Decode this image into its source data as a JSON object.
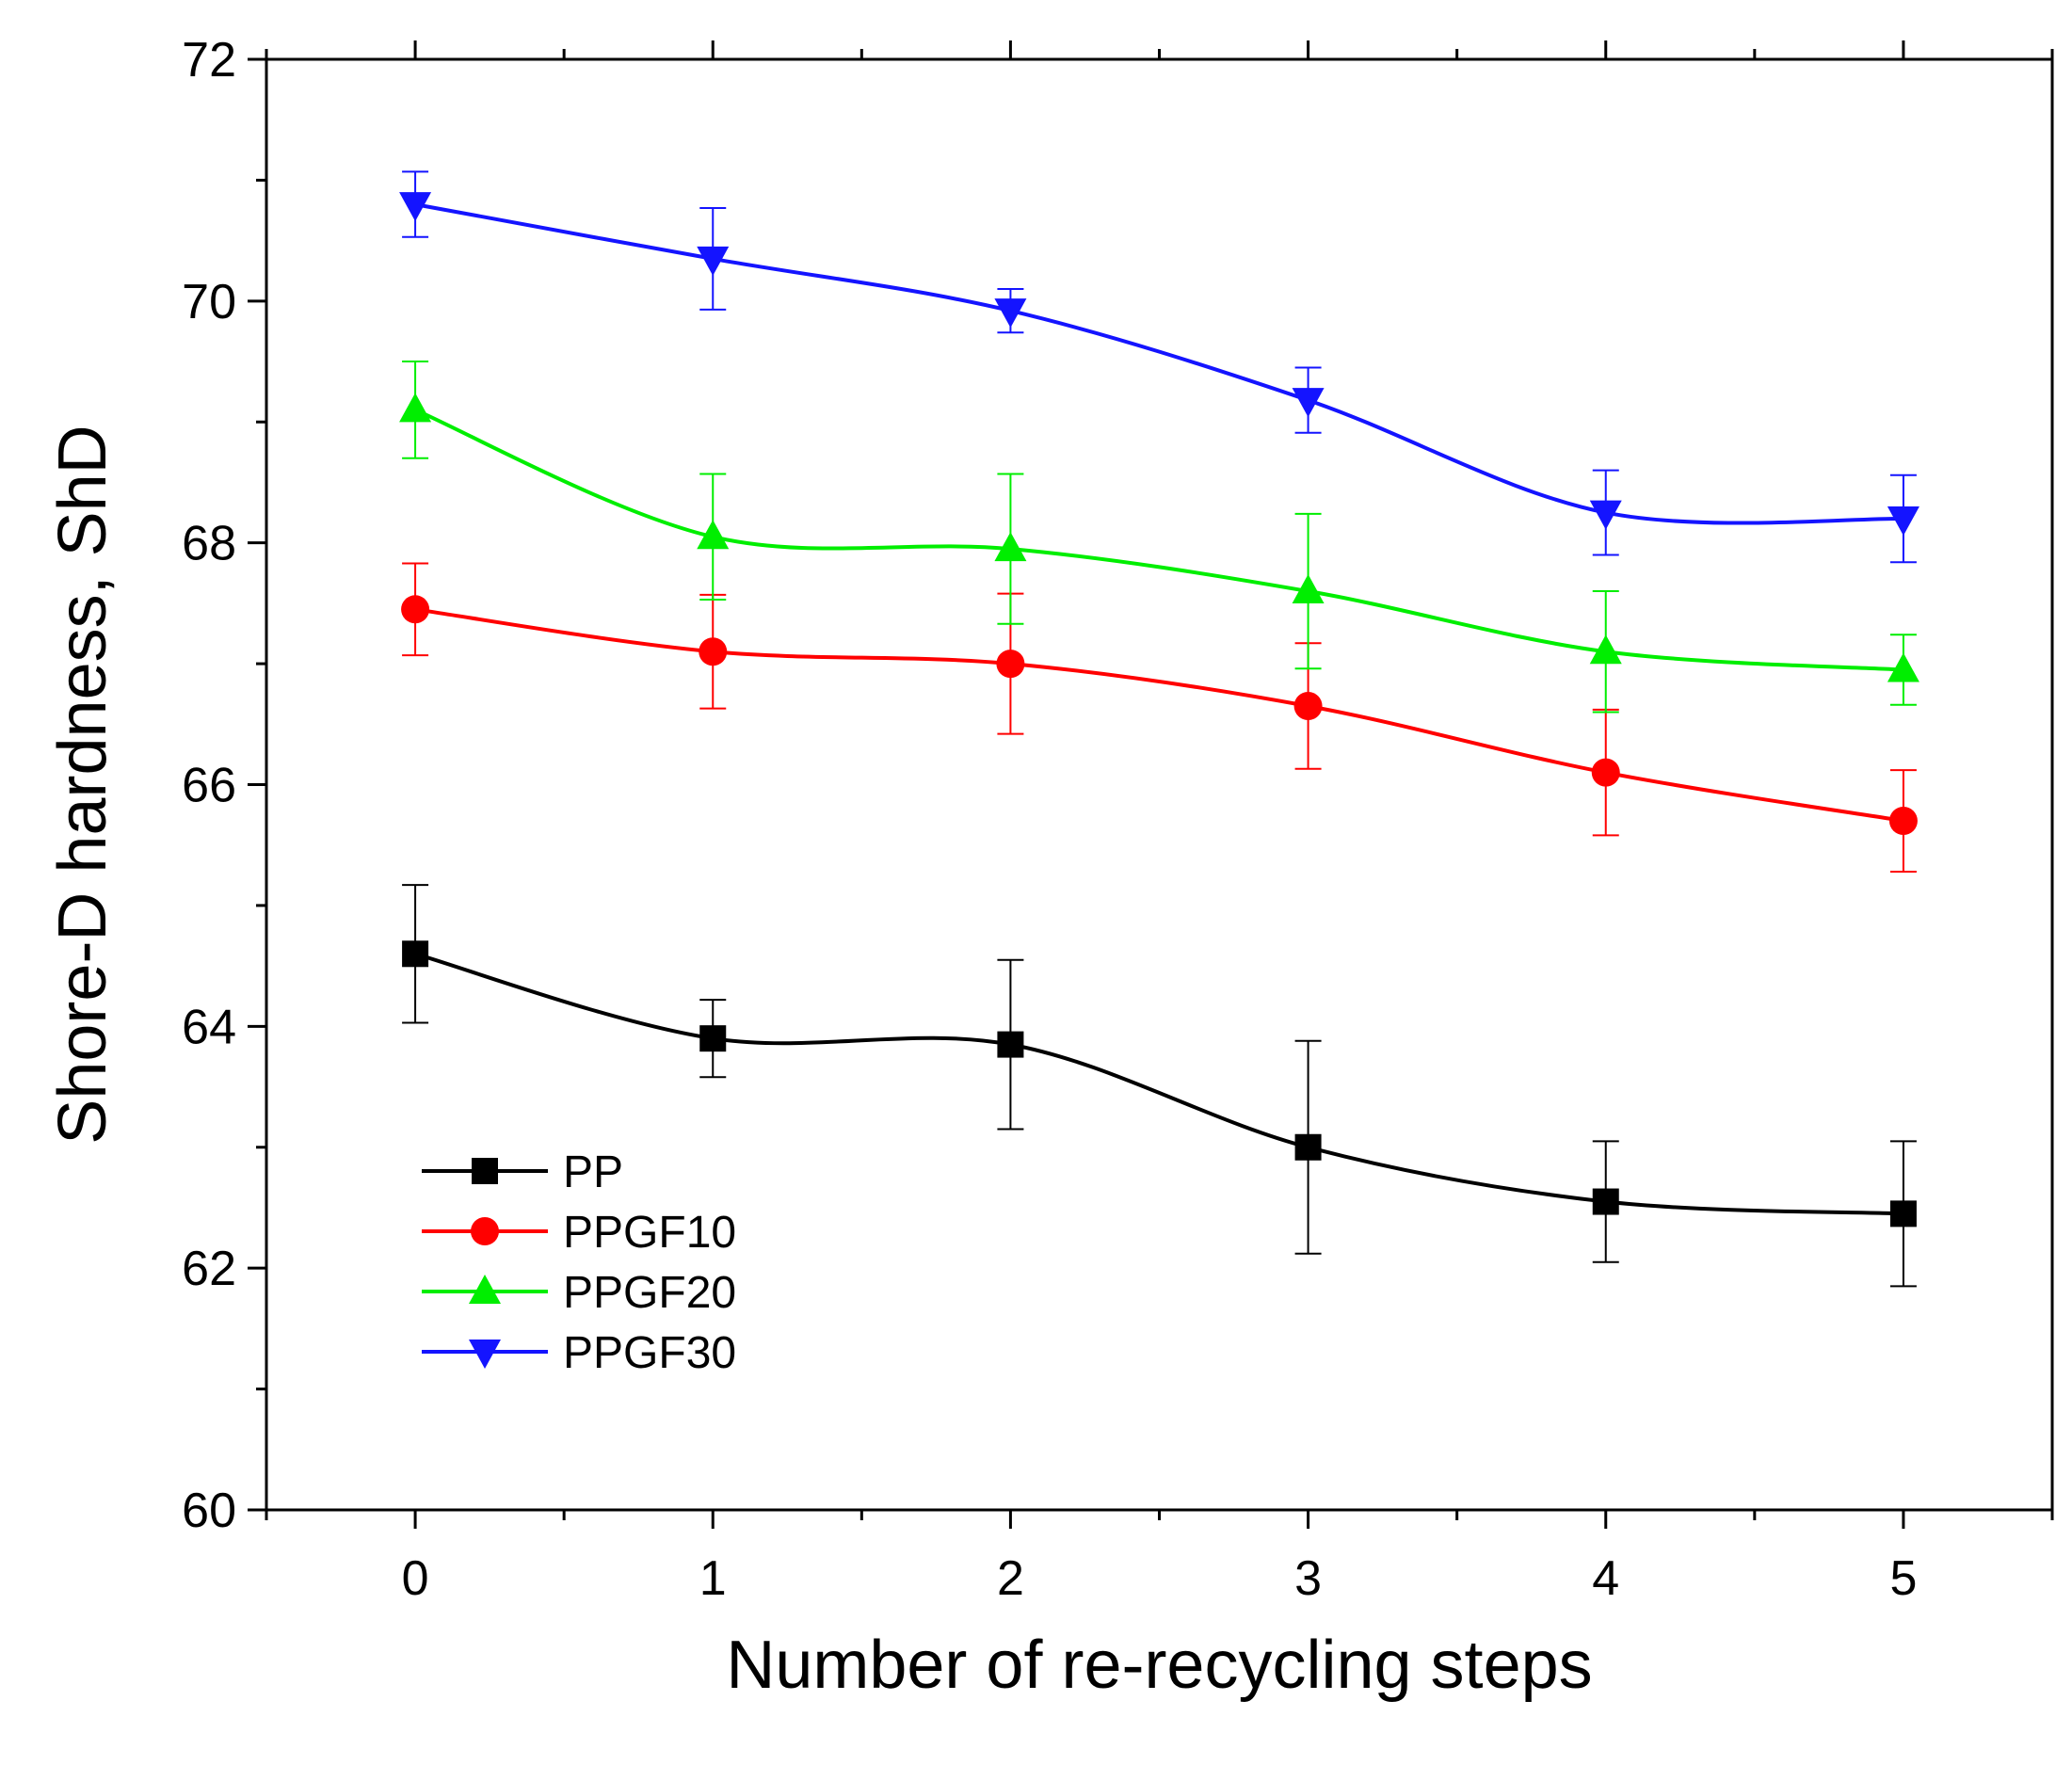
{
  "chart_data": {
    "type": "line",
    "title": "",
    "xlabel": "Number of re-recycling steps",
    "ylabel": "Shore-D hardness, ShD",
    "xlim": [
      -0.5,
      5.5
    ],
    "ylim": [
      60,
      72
    ],
    "x_ticks": [
      0,
      1,
      2,
      3,
      4,
      5
    ],
    "x_minor_ticks": [
      -0.5,
      0.5,
      1.5,
      2.5,
      3.5,
      4.5,
      5.5
    ],
    "y_ticks": [
      60,
      62,
      64,
      66,
      68,
      70,
      72
    ],
    "y_minor_ticks": [
      61,
      63,
      65,
      67,
      69,
      71
    ],
    "x_tick_labels": [
      "0",
      "1",
      "2",
      "3",
      "4",
      "5"
    ],
    "y_tick_labels": [
      "60",
      "62",
      "64",
      "66",
      "68",
      "70",
      "72"
    ],
    "grid": false,
    "legend_position": "bottom-left",
    "x": [
      0,
      1,
      2,
      3,
      4,
      5
    ],
    "series": [
      {
        "name": "PP",
        "color": "#000000",
        "marker": "square",
        "values": [
          64.6,
          63.9,
          63.85,
          63.0,
          62.55,
          62.45
        ],
        "errors": [
          0.57,
          0.32,
          0.7,
          0.88,
          0.5,
          0.6
        ]
      },
      {
        "name": "PPGF10",
        "color": "#ff0000",
        "marker": "circle",
        "values": [
          67.45,
          67.1,
          67.0,
          66.65,
          66.1,
          65.7
        ],
        "errors": [
          0.38,
          0.47,
          0.58,
          0.52,
          0.52,
          0.42
        ]
      },
      {
        "name": "PPGF20",
        "color": "#00ee00",
        "marker": "triangle-up",
        "values": [
          69.1,
          68.05,
          67.95,
          67.6,
          67.1,
          66.95
        ],
        "errors": [
          0.4,
          0.52,
          0.62,
          0.64,
          0.5,
          0.29
        ]
      },
      {
        "name": "PPGF30",
        "color": "#1414ff",
        "marker": "triangle-down",
        "values": [
          70.8,
          70.35,
          69.92,
          69.18,
          68.25,
          68.2
        ],
        "errors": [
          0.27,
          0.42,
          0.18,
          0.27,
          0.35,
          0.36
        ]
      }
    ]
  }
}
